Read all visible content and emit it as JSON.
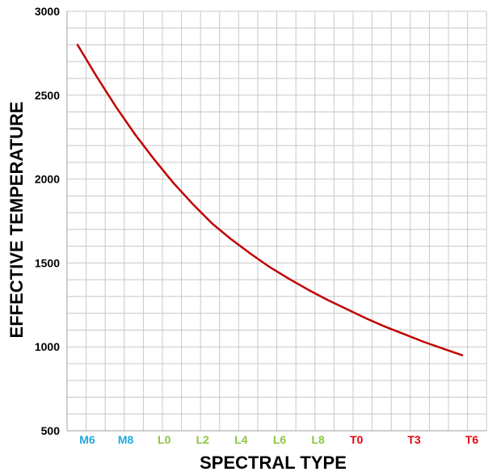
{
  "chart_data": {
    "type": "line",
    "title": "",
    "xlabel": "SPECTRAL TYPE",
    "ylabel": "EFFECTIVE TEMPERATURE",
    "ylim": [
      500,
      3000
    ],
    "yticks": [
      500,
      1000,
      1500,
      2000,
      2500,
      3000
    ],
    "grid": true,
    "x_categories": [
      {
        "label": "M6",
        "index": 0,
        "color": "#1FA9E0"
      },
      {
        "label": "M8",
        "index": 2,
        "color": "#1FA9E0"
      },
      {
        "label": "L0",
        "index": 4,
        "color": "#8CC63F"
      },
      {
        "label": "L2",
        "index": 6,
        "color": "#8CC63F"
      },
      {
        "label": "L4",
        "index": 8,
        "color": "#8CC63F"
      },
      {
        "label": "L6",
        "index": 10,
        "color": "#8CC63F"
      },
      {
        "label": "L8",
        "index": 12,
        "color": "#8CC63F"
      },
      {
        "label": "T0",
        "index": 14,
        "color": "#E8000B"
      },
      {
        "label": "T3",
        "index": 17,
        "color": "#E8000B"
      },
      {
        "label": "T6",
        "index": 20,
        "color": "#E8000B"
      }
    ],
    "series": [
      {
        "color": "#C00000",
        "points": [
          {
            "x": 0,
            "y": 2800
          },
          {
            "x": 1,
            "y": 2610
          },
          {
            "x": 2,
            "y": 2430
          },
          {
            "x": 3,
            "y": 2265
          },
          {
            "x": 4,
            "y": 2115
          },
          {
            "x": 5,
            "y": 1975
          },
          {
            "x": 6,
            "y": 1850
          },
          {
            "x": 7,
            "y": 1735
          },
          {
            "x": 8,
            "y": 1640
          },
          {
            "x": 9,
            "y": 1555
          },
          {
            "x": 10,
            "y": 1475
          },
          {
            "x": 11,
            "y": 1405
          },
          {
            "x": 12,
            "y": 1340
          },
          {
            "x": 13,
            "y": 1280
          },
          {
            "x": 14,
            "y": 1225
          },
          {
            "x": 15,
            "y": 1170
          },
          {
            "x": 16,
            "y": 1120
          },
          {
            "x": 17,
            "y": 1075
          },
          {
            "x": 18,
            "y": 1030
          },
          {
            "x": 19,
            "y": 990
          },
          {
            "x": 20,
            "y": 950
          }
        ]
      }
    ]
  }
}
